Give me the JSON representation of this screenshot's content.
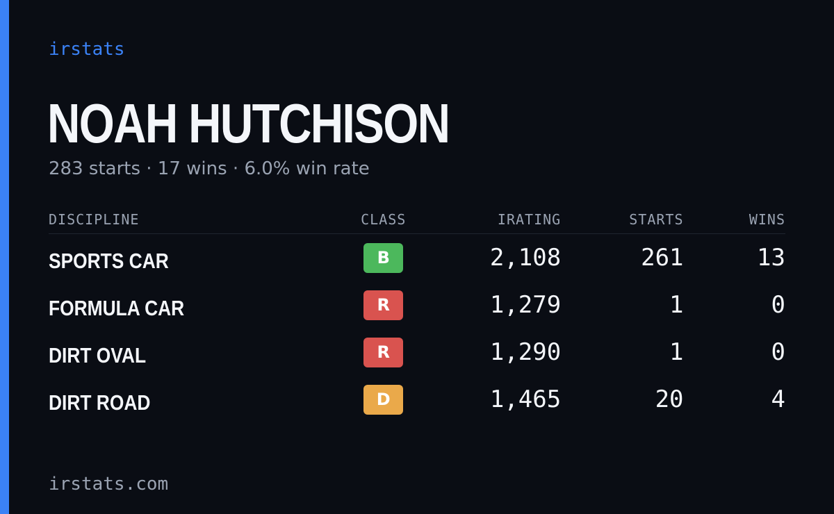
{
  "brand": "irstats",
  "name": "NOAH HUTCHISON",
  "summary": "283 starts · 17 wins · 6.0% win rate",
  "table": {
    "headers": [
      "DISCIPLINE",
      "CLASS",
      "IRATING",
      "STARTS",
      "WINS"
    ],
    "rows": [
      [
        "SPORTS CAR",
        "B",
        "2,108",
        "261",
        "13"
      ],
      [
        "FORMULA CAR",
        "R",
        "1,279",
        "1",
        "0"
      ],
      [
        "DIRT OVAL",
        "R",
        "1,290",
        "1",
        "0"
      ],
      [
        "DIRT ROAD",
        "D",
        "1,465",
        "20",
        "4"
      ]
    ]
  },
  "footer": "irstats.com"
}
